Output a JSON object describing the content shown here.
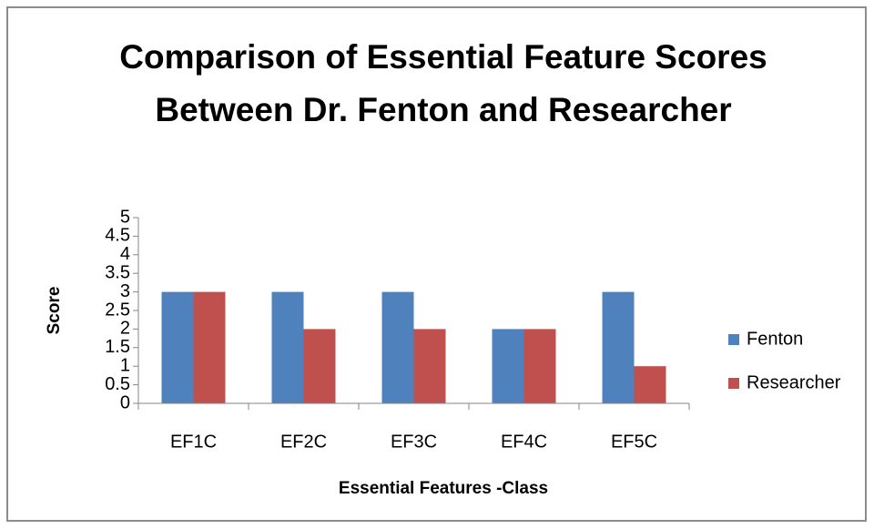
{
  "chart_data": {
    "type": "bar",
    "title": "Comparison of Essential Feature Scores Between Dr. Fenton and Researcher",
    "x_label": "Essential Features -Class",
    "y_label": "Score",
    "categories": [
      "EF1C",
      "EF2C",
      "EF3C",
      "EF4C",
      "EF5C"
    ],
    "series": [
      {
        "name": "Fenton",
        "color": "#4f81bd",
        "values": [
          3,
          3,
          3,
          2,
          3
        ]
      },
      {
        "name": "Researcher",
        "color": "#c0504d",
        "values": [
          3,
          2,
          2,
          2,
          1
        ]
      }
    ],
    "ylim": [
      0,
      5
    ],
    "yticks": [
      0,
      0.5,
      1,
      1.5,
      2,
      2.5,
      3,
      3.5,
      4,
      4.5,
      5
    ],
    "grid": false,
    "legend": "right"
  }
}
